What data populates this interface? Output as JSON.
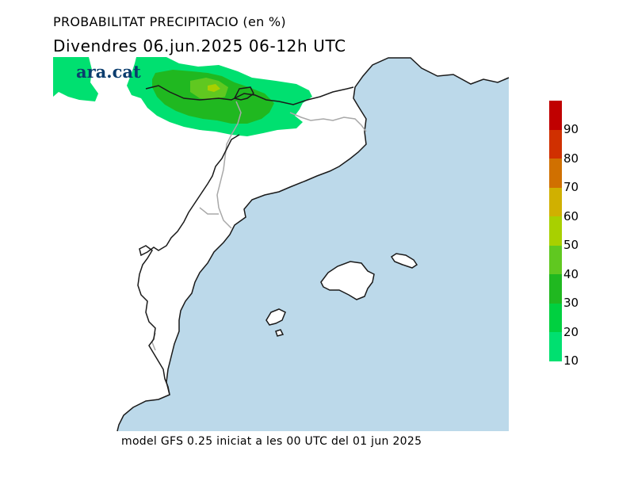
{
  "title": "PROBABILITAT PRECIPITACIO (en %)",
  "subtitle": "Divendres  06.jun.2025 06-12h UTC",
  "footer": "model GFS 0.25 iniciat a les 00 UTC del 01 jun 2025",
  "logo": "ara.cat",
  "colors": {
    "sea": "#bcd9ea",
    "land": "#ffffff",
    "coast": "#1a1a1a",
    "border": "#a8a8a8",
    "logo": "#0b3d6e"
  },
  "legend": {
    "ticks": [
      "90",
      "80",
      "70",
      "60",
      "50",
      "40",
      "30",
      "20",
      "10"
    ],
    "swatches_top_to_bottom": [
      "#c00000",
      "#d03000",
      "#d07000",
      "#d0b000",
      "#a8d000",
      "#60c820",
      "#20b820",
      "#00d040",
      "#00e070"
    ]
  }
}
